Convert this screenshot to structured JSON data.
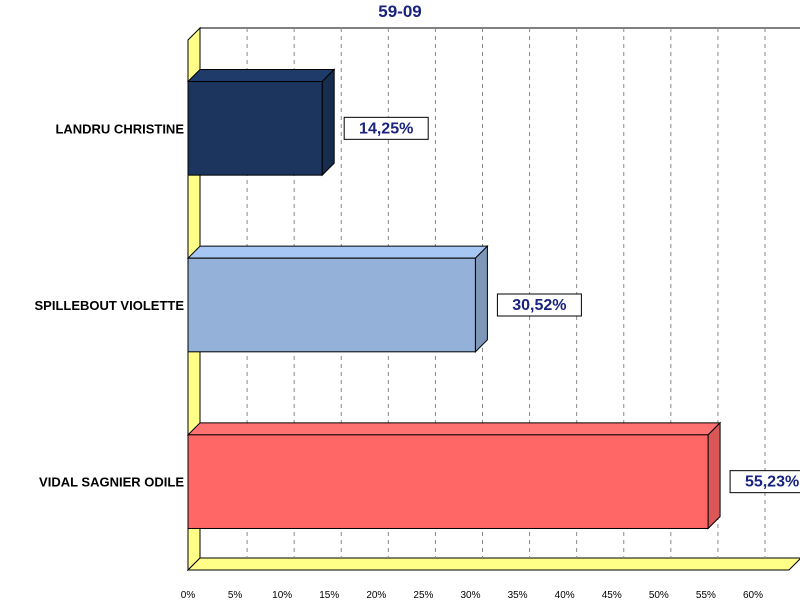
{
  "chart_data": {
    "type": "bar",
    "orientation": "horizontal",
    "title": "59-09",
    "categories": [
      "LANDRU CHRISTINE",
      "SPILLEBOUT VIOLETTE",
      "VIDAL SAGNIER ODILE"
    ],
    "values": [
      14.25,
      30.52,
      55.23
    ],
    "value_labels": [
      "14,25%",
      "30,52%",
      "55,23%"
    ],
    "colors": [
      "#1b355e",
      "#94b1d9",
      "#ff6666"
    ],
    "xlim": [
      0,
      60
    ],
    "x_ticks": [
      "0%",
      "5%",
      "10%",
      "15%",
      "20%",
      "25%",
      "30%",
      "35%",
      "40%",
      "45%",
      "50%",
      "55%",
      "60%"
    ],
    "grid": "vertical dashed",
    "wall_color": "#ffff88",
    "title_color": "#1a237e",
    "label_color": "#1a237e"
  }
}
